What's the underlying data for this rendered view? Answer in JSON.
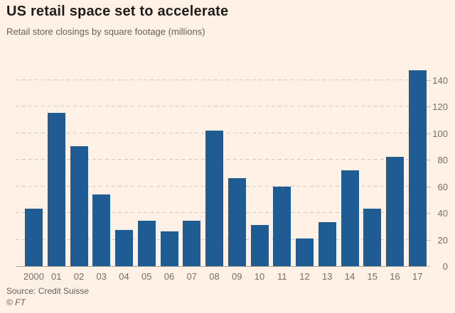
{
  "header": {
    "title": "US retail space set to accelerate",
    "subtitle": "Retail store closings by square footage (millions)"
  },
  "footer": {
    "source": "Source: Credit Suisse",
    "credit": "© FT"
  },
  "colors": {
    "background": "#FFF1E5",
    "bar": "#205C94",
    "gridline": "#D3CABE",
    "axis_line": "#A9A196",
    "title_text": "#1F1C1A",
    "muted_text": "#66605C",
    "tick_text": "#746E66"
  },
  "chart_data": {
    "type": "bar",
    "title": "US retail space set to accelerate",
    "subtitle": "Retail store closings by square footage (millions)",
    "categories": [
      "2000",
      "01",
      "02",
      "03",
      "04",
      "05",
      "06",
      "07",
      "08",
      "09",
      "10",
      "11",
      "12",
      "13",
      "14",
      "15",
      "16",
      "17"
    ],
    "values": [
      43,
      115,
      90,
      54,
      27,
      34,
      26,
      34,
      102,
      66,
      31,
      60,
      21,
      33,
      72,
      43,
      82,
      147
    ],
    "xlabel": "",
    "ylabel": "",
    "ylim": [
      0,
      152.5
    ],
    "yticks": [
      0,
      20,
      40,
      60,
      80,
      100,
      120,
      140
    ],
    "grid": "horizontal-dashed",
    "y_axis_position": "right",
    "legend": "none",
    "source": "Source: Credit Suisse",
    "credit": "© FT"
  }
}
